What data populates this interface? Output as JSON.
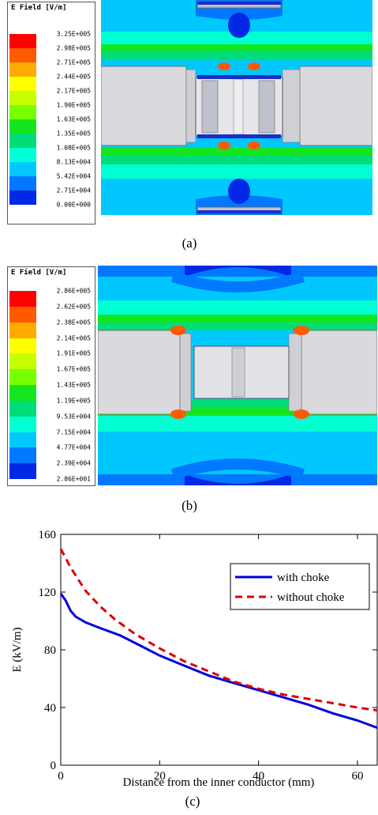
{
  "panel_a": {
    "caption": "(a)",
    "legend_title": "E Field [V/m]",
    "levels": [
      "3.25E+005",
      "2.98E+005",
      "2.71E+005",
      "2.44E+005",
      "2.17E+005",
      "1.90E+005",
      "1.63E+005",
      "1.35E+005",
      "1.08E+005",
      "8.13E+004",
      "5.42E+004",
      "2.71E+004",
      "0.00E+000"
    ]
  },
  "panel_b": {
    "caption": "(b)",
    "legend_title": "E Field [V/m]",
    "levels": [
      "2.86E+005",
      "2.62E+005",
      "2.38E+005",
      "2.14E+005",
      "1.91E+005",
      "1.67E+005",
      "1.43E+005",
      "1.19E+005",
      "9.53E+004",
      "7.15E+004",
      "4.77E+004",
      "2.39E+004",
      "2.86E+001"
    ]
  },
  "colorscale": [
    "#ff0000",
    "#ff5a00",
    "#ffaa00",
    "#ffff00",
    "#c8ff00",
    "#78ff00",
    "#14e61e",
    "#00dc78",
    "#00ffd2",
    "#00c8ff",
    "#0078ff",
    "#0028e6"
  ],
  "panel_c": {
    "caption": "(c)"
  },
  "chart_data": {
    "type": "line",
    "xlabel": "Distance from the inner conductor (mm)",
    "ylabel": "E (kV/m)",
    "xlim": [
      0,
      64
    ],
    "ylim": [
      0,
      160
    ],
    "xticks": [
      0,
      20,
      40,
      60
    ],
    "yticks": [
      0,
      40,
      80,
      120,
      160
    ],
    "legend_position": "top-right",
    "series": [
      {
        "name": "with choke",
        "color": "#0000dd",
        "style": "solid",
        "x": [
          0,
          1,
          2,
          3,
          5,
          8,
          12,
          16,
          20,
          25,
          30,
          35,
          40,
          45,
          50,
          55,
          60,
          64
        ],
        "y": [
          119,
          114,
          107,
          103,
          99,
          95,
          90,
          83,
          76,
          69,
          62,
          57,
          52,
          47,
          42,
          36,
          31,
          26
        ]
      },
      {
        "name": "without choke",
        "color": "#dd0000",
        "style": "dashed",
        "x": [
          0,
          2,
          5,
          8,
          11,
          15,
          20,
          25,
          30,
          35,
          40,
          45,
          50,
          55,
          60,
          64
        ],
        "y": [
          150,
          137,
          121,
          110,
          101,
          91,
          81,
          72,
          65,
          58,
          53,
          49,
          46,
          43,
          40,
          38
        ]
      }
    ]
  }
}
